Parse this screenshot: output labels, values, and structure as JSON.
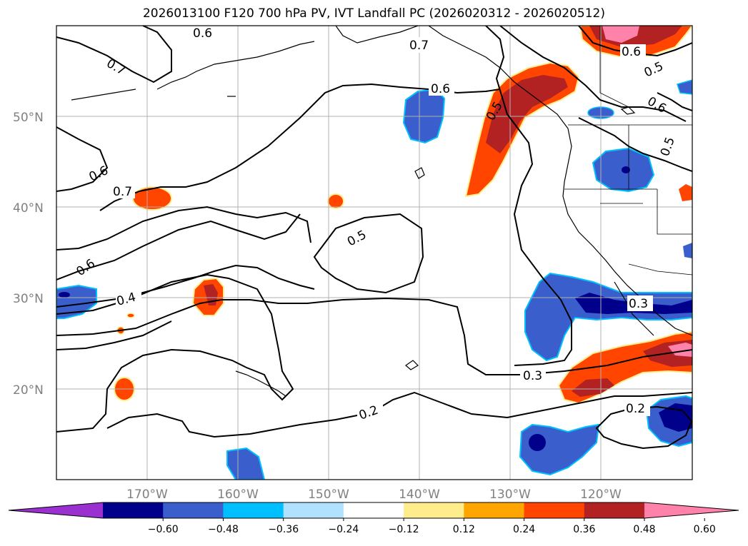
{
  "title": "2026013100 F120 700 hPa PV, IVT Landfall PC (2026020312 - 2026020512)",
  "map": {
    "lat_labels": [
      "50°N",
      "40°N",
      "30°N",
      "20°N"
    ],
    "lon_labels": [
      "170°W",
      "160°W",
      "150°W",
      "140°W",
      "130°W",
      "120°W"
    ],
    "contour_labels": [
      "0.7",
      "0.6",
      "0.6",
      "0.7",
      "0.6",
      "0.5",
      "0.5",
      "0.6",
      "0.5",
      "0.6",
      "0.7",
      "0.6",
      "0.4",
      "0.5",
      "0.3",
      "0.3",
      "0.2",
      "0.2"
    ]
  },
  "colorbar": {
    "ticks": [
      "−0.60",
      "−0.48",
      "−0.36",
      "−0.24",
      "−0.12",
      "0.12",
      "0.24",
      "0.36",
      "0.48",
      "0.60"
    ],
    "colors": [
      "#9b30d0",
      "#00008b",
      "#3a5fcd",
      "#00bfff",
      "#b0e2ff",
      "#ffffff",
      "#ffec8b",
      "#ffa500",
      "#ff4500",
      "#b22222",
      "#ff82ab"
    ]
  }
}
